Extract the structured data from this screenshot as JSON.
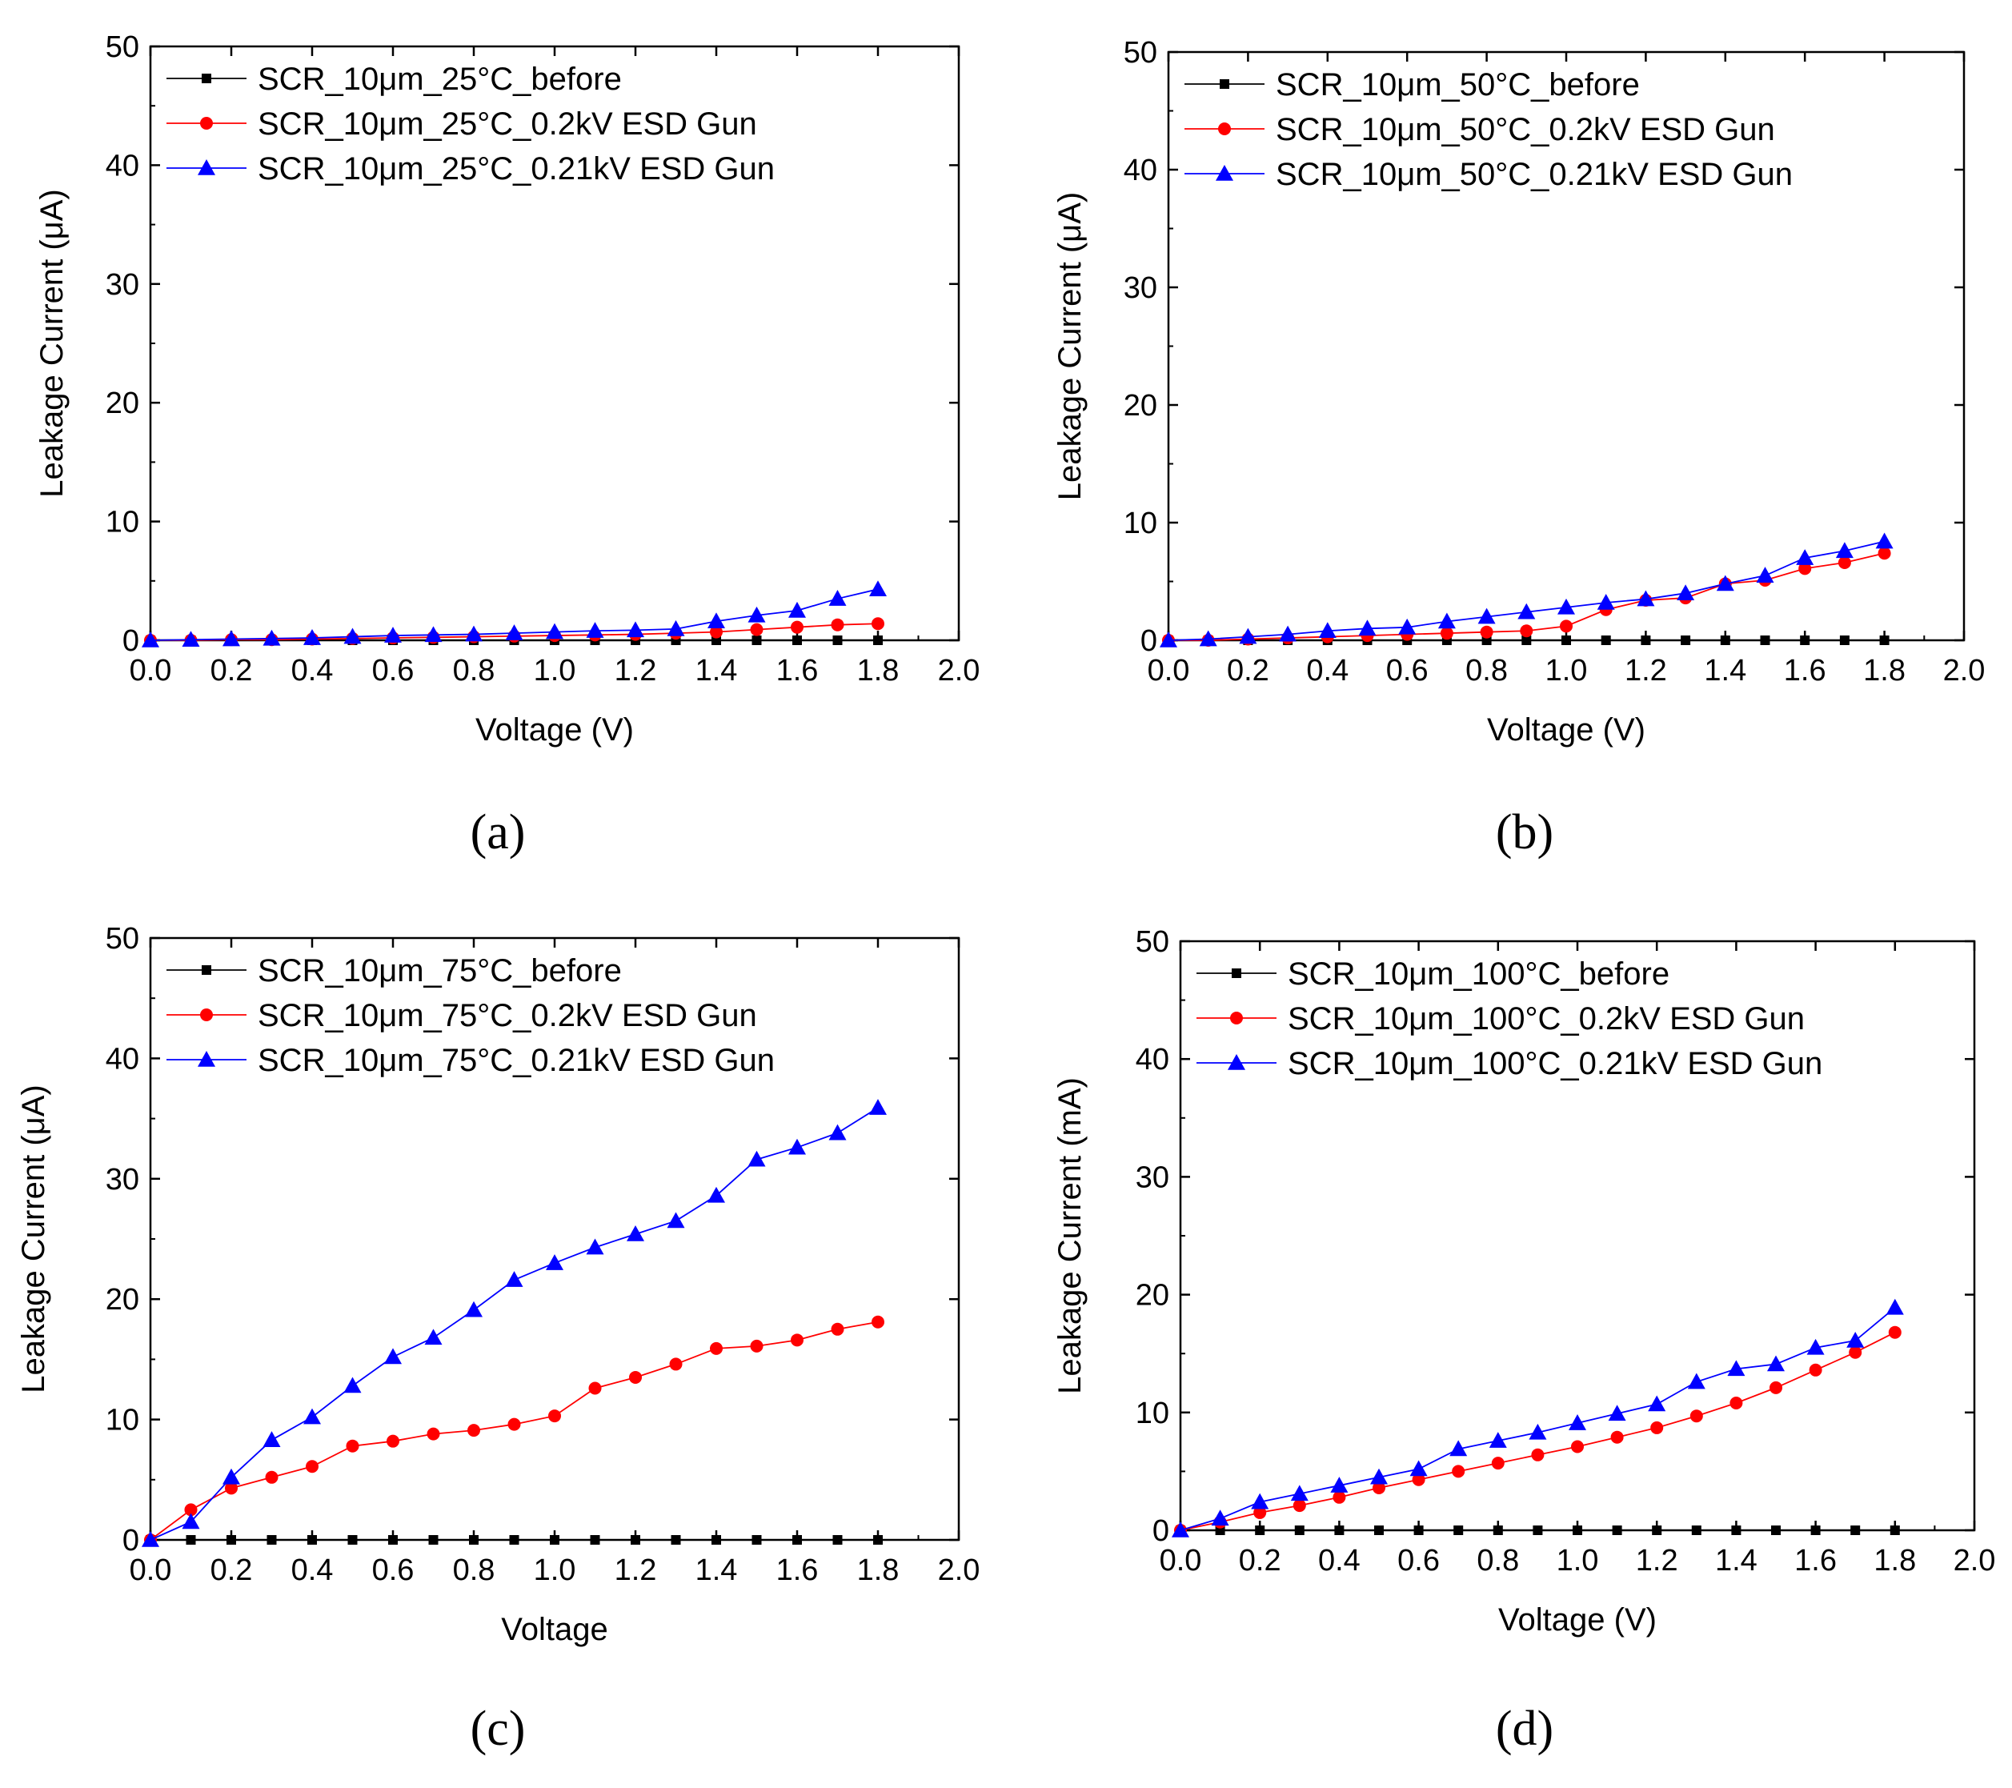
{
  "figure": {
    "background": "#ffffff"
  },
  "colors": {
    "before": "#000000",
    "gun02": "#ff0000",
    "gun021": "#0000ff",
    "axis": "#000000"
  },
  "chart_data": [
    {
      "type": "line",
      "panel": "(a)",
      "xlabel": "Voltage (V)",
      "ylabel": "Leakage Current (μA)",
      "xlim": [
        0,
        2.0
      ],
      "ylim": [
        0,
        50
      ],
      "xticks": [
        "0.0",
        "0.2",
        "0.4",
        "0.6",
        "0.8",
        "1.0",
        "1.2",
        "1.4",
        "1.6",
        "1.8",
        "2.0"
      ],
      "yticks": [
        "0",
        "10",
        "20",
        "30",
        "40",
        "50"
      ],
      "x": [
        0,
        0.1,
        0.2,
        0.3,
        0.4,
        0.5,
        0.6,
        0.7,
        0.8,
        0.9,
        1.0,
        1.1,
        1.2,
        1.3,
        1.4,
        1.5,
        1.6,
        1.7,
        1.8
      ],
      "legend_position": "top-left",
      "series": [
        {
          "name": "SCR_10μm_25°C_before",
          "marker": "square",
          "color": "#000000",
          "values": [
            0,
            0,
            0,
            0,
            0,
            0,
            0,
            0,
            0,
            0,
            0,
            0,
            0,
            0,
            0,
            0,
            0,
            0,
            0
          ]
        },
        {
          "name": "SCR_10μm_25°C_0.2kV ESD Gun",
          "marker": "circle",
          "color": "#ff0000",
          "values": [
            0,
            0,
            0.05,
            0.05,
            0.1,
            0.15,
            0.2,
            0.25,
            0.3,
            0.35,
            0.4,
            0.45,
            0.5,
            0.6,
            0.7,
            0.9,
            1.1,
            1.3,
            1.4
          ]
        },
        {
          "name": "SCR_10μm_25°C_0.21kV ESD Gun",
          "marker": "triangle",
          "color": "#0000ff",
          "values": [
            0,
            0.05,
            0.1,
            0.15,
            0.2,
            0.3,
            0.4,
            0.45,
            0.5,
            0.6,
            0.7,
            0.8,
            0.85,
            0.95,
            1.6,
            2.1,
            2.5,
            3.5,
            4.3
          ]
        }
      ]
    },
    {
      "type": "line",
      "panel": "(b)",
      "xlabel": "Voltage (V)",
      "ylabel": "Leakage Current (μA)",
      "xlim": [
        0,
        2.0
      ],
      "ylim": [
        0,
        50
      ],
      "xticks": [
        "0.0",
        "0.2",
        "0.4",
        "0.6",
        "0.8",
        "1.0",
        "1.2",
        "1.4",
        "1.6",
        "1.8",
        "2.0"
      ],
      "yticks": [
        "0",
        "10",
        "20",
        "30",
        "40",
        "50"
      ],
      "x": [
        0,
        0.1,
        0.2,
        0.3,
        0.4,
        0.5,
        0.6,
        0.7,
        0.8,
        0.9,
        1.0,
        1.1,
        1.2,
        1.3,
        1.4,
        1.5,
        1.6,
        1.7,
        1.8
      ],
      "legend_position": "top-left",
      "series": [
        {
          "name": "SCR_10μm_50°C_before",
          "marker": "square",
          "color": "#000000",
          "values": [
            0,
            0,
            0,
            0,
            0,
            0,
            0,
            0,
            0,
            0,
            0,
            0,
            0,
            0,
            0,
            0,
            0,
            0,
            0
          ]
        },
        {
          "name": "SCR_10μm_50°C_0.2kV ESD Gun",
          "marker": "circle",
          "color": "#ff0000",
          "values": [
            0,
            0,
            0.1,
            0.2,
            0.3,
            0.4,
            0.5,
            0.6,
            0.7,
            0.8,
            1.2,
            2.6,
            3.4,
            3.6,
            4.8,
            5.1,
            6.1,
            6.6,
            7.4
          ]
        },
        {
          "name": "SCR_10μm_50°C_0.21kV ESD Gun",
          "marker": "triangle",
          "color": "#0000ff",
          "values": [
            0,
            0.1,
            0.3,
            0.5,
            0.8,
            1.0,
            1.1,
            1.6,
            2.0,
            2.4,
            2.8,
            3.2,
            3.5,
            4.0,
            4.8,
            5.5,
            7.0,
            7.6,
            8.4
          ]
        }
      ]
    },
    {
      "type": "line",
      "panel": "(c)",
      "xlabel": "Voltage",
      "ylabel": "Leakage Current (μA)",
      "xlim": [
        0,
        2.0
      ],
      "ylim": [
        0,
        50
      ],
      "xticks": [
        "0.0",
        "0.2",
        "0.4",
        "0.6",
        "0.8",
        "1.0",
        "1.2",
        "1.4",
        "1.6",
        "1.8",
        "2.0"
      ],
      "yticks": [
        "0",
        "10",
        "20",
        "30",
        "40",
        "50"
      ],
      "x": [
        0,
        0.1,
        0.2,
        0.3,
        0.4,
        0.5,
        0.6,
        0.7,
        0.8,
        0.9,
        1.0,
        1.1,
        1.2,
        1.3,
        1.4,
        1.5,
        1.6,
        1.7,
        1.8
      ],
      "legend_position": "top-left",
      "series": [
        {
          "name": "SCR_10μm_75°C_before",
          "marker": "square",
          "color": "#000000",
          "values": [
            0,
            0,
            0,
            0,
            0,
            0,
            0,
            0,
            0,
            0,
            0,
            0,
            0,
            0,
            0,
            0,
            0,
            0,
            0
          ]
        },
        {
          "name": "SCR_10μm_75°C_0.2kV ESD Gun",
          "marker": "circle",
          "color": "#ff0000",
          "values": [
            0,
            2.5,
            4.3,
            5.2,
            6.1,
            7.8,
            8.2,
            8.8,
            9.1,
            9.6,
            10.3,
            12.6,
            13.5,
            14.6,
            15.9,
            16.1,
            16.6,
            17.5,
            18.1
          ]
        },
        {
          "name": "SCR_10μm_75°C_0.21kV ESD Gun",
          "marker": "triangle",
          "color": "#0000ff",
          "values": [
            0,
            1.5,
            5.2,
            8.3,
            10.2,
            12.8,
            15.2,
            16.8,
            19.1,
            21.6,
            23.0,
            24.3,
            25.4,
            26.5,
            28.6,
            31.6,
            32.6,
            33.8,
            35.9
          ]
        }
      ]
    },
    {
      "type": "line",
      "panel": "(d)",
      "xlabel": "Voltage (V)",
      "ylabel": "Leakage Current (mA)",
      "xlim": [
        0,
        2.0
      ],
      "ylim": [
        0,
        50
      ],
      "xticks": [
        "0.0",
        "0.2",
        "0.4",
        "0.6",
        "0.8",
        "1.0",
        "1.2",
        "1.4",
        "1.6",
        "1.8",
        "2.0"
      ],
      "yticks": [
        "0",
        "10",
        "20",
        "30",
        "40",
        "50"
      ],
      "x": [
        0,
        0.1,
        0.2,
        0.3,
        0.4,
        0.5,
        0.6,
        0.7,
        0.8,
        0.9,
        1.0,
        1.1,
        1.2,
        1.3,
        1.4,
        1.5,
        1.6,
        1.7,
        1.8
      ],
      "legend_position": "top-left",
      "series": [
        {
          "name": "SCR_10μm_100°C_before",
          "marker": "square",
          "color": "#000000",
          "values": [
            0,
            0,
            0,
            0,
            0,
            0,
            0,
            0,
            0,
            0,
            0,
            0,
            0,
            0,
            0,
            0,
            0,
            0,
            0
          ]
        },
        {
          "name": "SCR_10μm_100°C_0.2kV ESD Gun",
          "marker": "circle",
          "color": "#ff0000",
          "values": [
            0,
            0.7,
            1.5,
            2.1,
            2.8,
            3.6,
            4.3,
            5.0,
            5.7,
            6.4,
            7.1,
            7.9,
            8.7,
            9.7,
            10.8,
            12.1,
            13.6,
            15.1,
            16.8
          ]
        },
        {
          "name": "SCR_10μm_100°C_0.21kV ESD Gun",
          "marker": "triangle",
          "color": "#0000ff",
          "values": [
            0,
            1.0,
            2.4,
            3.1,
            3.8,
            4.5,
            5.2,
            6.9,
            7.6,
            8.3,
            9.1,
            9.9,
            10.7,
            12.6,
            13.7,
            14.1,
            15.5,
            16.1,
            18.9
          ]
        }
      ]
    }
  ]
}
